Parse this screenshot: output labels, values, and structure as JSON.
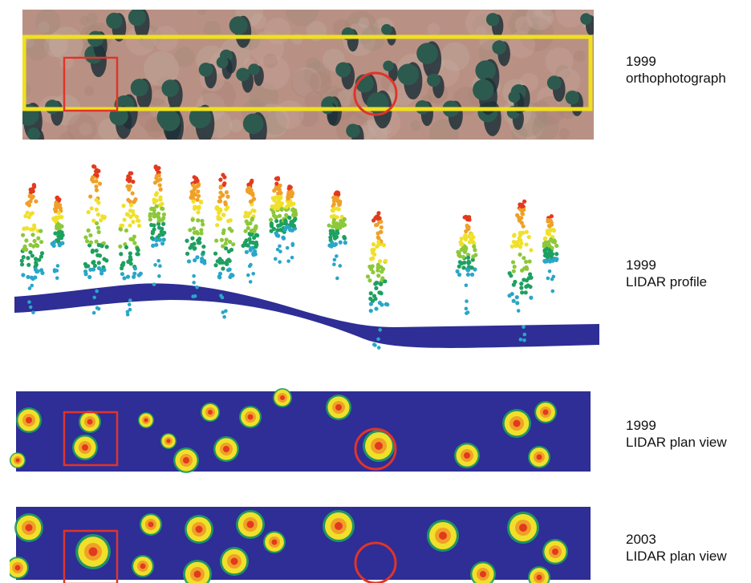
{
  "panels": [
    {
      "year": "1999",
      "caption": "orthophotograph"
    },
    {
      "year": "1999",
      "caption": "LIDAR profile"
    },
    {
      "year": "1999",
      "caption": "LIDAR plan view"
    },
    {
      "year": "2003",
      "caption": "LIDAR plan view"
    }
  ],
  "colors": {
    "ground": "#2e2e96",
    "highlight_box": "#f0e01e",
    "marker": "#e0342a",
    "photo_background": "#b99184",
    "tree_shadow": "#1e3038"
  },
  "height_color_ramp": [
    "#2aa6c8",
    "#1ea060",
    "#8cc83a",
    "#f0e02a",
    "#f0a028",
    "#e23a1e"
  ],
  "markers": [
    {
      "type": "square",
      "panels": [
        "orthophotograph",
        "1999 plan view",
        "2003 plan view"
      ]
    },
    {
      "type": "circle",
      "panels": [
        "orthophotograph",
        "1999 plan view",
        "2003 plan view"
      ]
    }
  ]
}
